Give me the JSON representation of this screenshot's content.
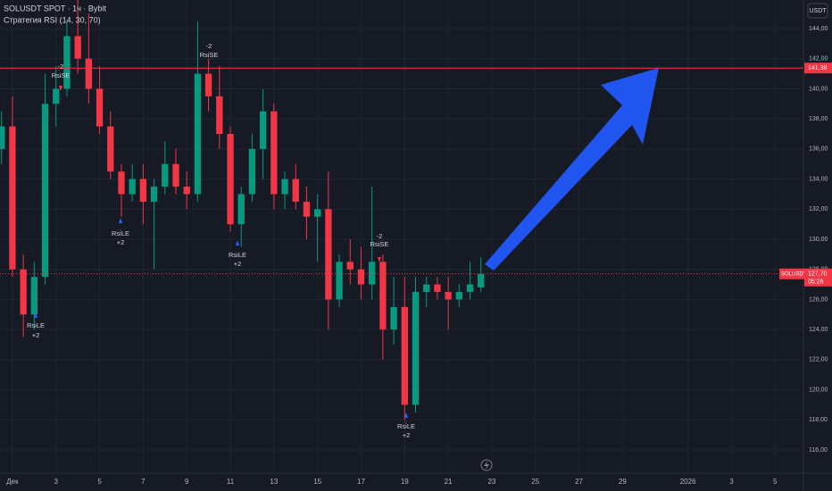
{
  "chart_data": {
    "type": "candlestick",
    "title": "SOLUSDT SPOT · 1ч · Bybit",
    "subtitle": "Стратегия RSI (14, 30, 70)",
    "currency": "USDT",
    "x": [
      0.5,
      1,
      1.5,
      2,
      2.5,
      3,
      3.5,
      4,
      4.5,
      5,
      5.5,
      6,
      6.5,
      7,
      7.5,
      8,
      8.5,
      9,
      9.5,
      10,
      10.5,
      11,
      11.5,
      12,
      12.5,
      13,
      13.5,
      14,
      14.5,
      15,
      15.5,
      16,
      16.5,
      17,
      17.5,
      18,
      18.5,
      19,
      19.5,
      20,
      20.5,
      21,
      21.5,
      22,
      22.5
    ],
    "open": [
      136,
      137.5,
      128,
      125,
      127.5,
      139,
      140,
      143.5,
      142,
      140,
      137.5,
      134.5,
      133,
      134,
      132.5,
      133.5,
      135,
      133.5,
      133,
      141,
      139.5,
      137,
      131,
      133,
      136,
      138.5,
      133,
      134,
      132.5,
      131.5,
      132,
      126,
      128.5,
      128,
      127,
      128.5,
      124,
      125.5,
      119,
      126.5,
      127,
      126.5,
      126,
      126.5,
      126.8
    ],
    "high": [
      138.5,
      139.5,
      129,
      128.5,
      141,
      141.5,
      144.5,
      146,
      145,
      141.5,
      138.5,
      135,
      135,
      135,
      134,
      136.5,
      136,
      134.5,
      144.5,
      142,
      141.5,
      137.5,
      133.5,
      137,
      140,
      139,
      134.5,
      135,
      133.5,
      133,
      134.5,
      129,
      130,
      129.5,
      133.5,
      129,
      127.5,
      127.5,
      127.5,
      127.5,
      127.5,
      127.5,
      127,
      128.5,
      128.8
    ],
    "low": [
      135,
      127.5,
      123.5,
      124,
      127,
      137.5,
      139.5,
      141,
      139,
      137,
      134,
      131.5,
      132.5,
      131,
      128,
      133,
      133,
      132,
      132.5,
      138.5,
      136,
      130.5,
      129.5,
      132.5,
      134,
      132,
      132,
      132,
      130,
      128.5,
      124,
      125.5,
      127,
      126,
      126,
      122,
      123,
      118,
      118.5,
      125.5,
      126,
      124,
      125.5,
      126,
      126.5
    ],
    "close": [
      137.5,
      128,
      125,
      127.5,
      139,
      140,
      143.5,
      142,
      140,
      137.5,
      134.5,
      133,
      134,
      132.5,
      133.5,
      135,
      133.5,
      133,
      141,
      139.5,
      137,
      131,
      133,
      136,
      138.5,
      133,
      134,
      132.5,
      131.5,
      132,
      126,
      128.5,
      128,
      127,
      128.5,
      124,
      125.5,
      119,
      126.5,
      127,
      126.5,
      126,
      126.5,
      127,
      127.7
    ],
    "up_color": "#089981",
    "down_color": "#f23645",
    "xlim": [
      0.43,
      37.3
    ],
    "xticks": [
      {
        "value": 1,
        "label": "Дек"
      },
      3,
      5,
      7,
      9,
      11,
      13,
      15,
      17,
      19,
      21,
      23,
      25,
      27,
      29,
      {
        "value": 32,
        "label": "2026"
      },
      {
        "value": 34,
        "label": "3"
      },
      {
        "value": 36,
        "label": "5"
      }
    ],
    "ylim": [
      114.46,
      145.9
    ],
    "yticks": [
      {
        "value": 116,
        "label": "116,00"
      },
      {
        "value": 118,
        "label": "118,00"
      },
      {
        "value": 120,
        "label": "120,00"
      },
      {
        "value": 122,
        "label": "122,00"
      },
      {
        "value": 124,
        "label": "124,00"
      },
      {
        "value": 126,
        "label": "126,00"
      },
      {
        "value": 128,
        "label": "128,00"
      },
      {
        "value": 130,
        "label": "130,00"
      },
      {
        "value": 132,
        "label": "132,00"
      },
      {
        "value": 134,
        "label": "134,00"
      },
      {
        "value": 136,
        "label": "136,00"
      },
      {
        "value": 138,
        "label": "138,00"
      },
      {
        "value": 140,
        "label": "140,00"
      },
      {
        "value": 142,
        "label": "142,00"
      },
      {
        "value": 144,
        "label": "144,00"
      }
    ],
    "grid": true,
    "hline": {
      "value": 141.38,
      "label": "141,38",
      "color": "#f23645"
    },
    "last_price": {
      "name": "SOLUSDT",
      "value": 127.7,
      "label": "127,70",
      "countdown": "05:26"
    },
    "annotations": [
      {
        "label": "-2",
        "signal": "RsiSE"
      },
      {
        "label": "-2",
        "signal": "RsiSE"
      },
      {
        "label": "-2",
        "signal": "RsiSE"
      },
      {
        "label": "+2",
        "signal": "RsiLE"
      },
      {
        "label": "+2",
        "signal": "RsiLE"
      },
      {
        "label": "+2",
        "signal": "RsiLE"
      },
      {
        "label": "+2",
        "signal": "RsiLE"
      }
    ]
  }
}
